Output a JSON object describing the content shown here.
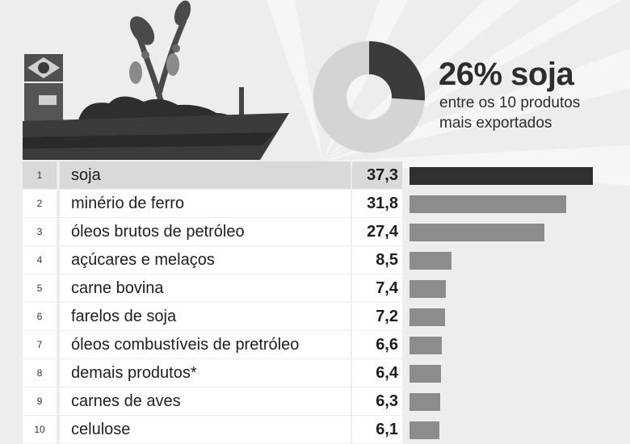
{
  "headline": {
    "value": "26% soja",
    "line1": "entre os 10 produtos",
    "line2": "mais exportados"
  },
  "colors": {
    "highlight_bar": "#303030",
    "other_bar": "#8c8c8c",
    "donut_dark": "#3b3b3b",
    "donut_light": "#d4d4d4"
  },
  "donut": {
    "highlight_percent": 26
  },
  "chart_data": {
    "type": "bar",
    "orientation": "horizontal",
    "categories": [
      "soja",
      "minério de ferro",
      "óleos brutos de petróleo",
      "açúcares e melaços",
      "carne bovina",
      "farelos de soja",
      "óleos combustíveis de pretróleo",
      "demais produtos*",
      "carnes de aves",
      "celulose"
    ],
    "ranks": [
      "1",
      "2",
      "3",
      "4",
      "5",
      "6",
      "7",
      "8",
      "9",
      "10"
    ],
    "values": [
      37.3,
      31.8,
      27.4,
      8.5,
      7.4,
      7.2,
      6.6,
      6.4,
      6.3,
      6.1
    ],
    "value_labels": [
      "37,3",
      "31,8",
      "27,4",
      "8,5",
      "7,4",
      "7,2",
      "6,6",
      "6,4",
      "6,3",
      "6,1"
    ],
    "highlight_index": 0
  }
}
